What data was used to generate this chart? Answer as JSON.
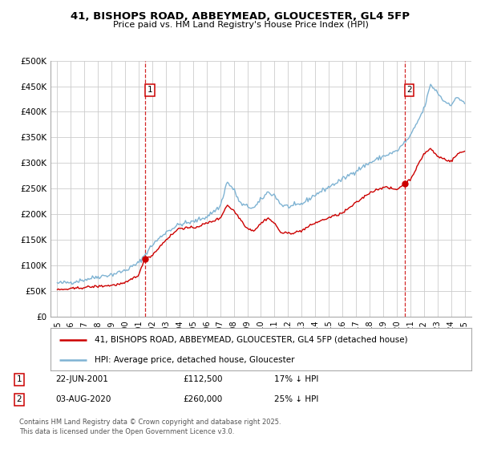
{
  "title_line1": "41, BISHOPS ROAD, ABBEYMEAD, GLOUCESTER, GL4 5FP",
  "title_line2": "Price paid vs. HM Land Registry's House Price Index (HPI)",
  "ylim": [
    0,
    500000
  ],
  "yticks": [
    0,
    50000,
    100000,
    150000,
    200000,
    250000,
    300000,
    350000,
    400000,
    450000,
    500000
  ],
  "ytick_labels": [
    "£0",
    "£50K",
    "£100K",
    "£150K",
    "£200K",
    "£250K",
    "£300K",
    "£350K",
    "£400K",
    "£450K",
    "£500K"
  ],
  "xlim_start": 1994.5,
  "xlim_end": 2025.5,
  "xticks": [
    1995,
    1996,
    1997,
    1998,
    1999,
    2000,
    2001,
    2002,
    2003,
    2004,
    2005,
    2006,
    2007,
    2008,
    2009,
    2010,
    2011,
    2012,
    2013,
    2014,
    2015,
    2016,
    2017,
    2018,
    2019,
    2020,
    2021,
    2022,
    2023,
    2024,
    2025
  ],
  "legend_entries": [
    "41, BISHOPS ROAD, ABBEYMEAD, GLOUCESTER, GL4 5FP (detached house)",
    "HPI: Average price, detached house, Gloucester"
  ],
  "legend_colors": [
    "#cc0000",
    "#7fb3d3"
  ],
  "sale1_x": 2001.47,
  "sale1_y": 112500,
  "sale1_label": "1",
  "sale1_vline_x": 2001.47,
  "sale2_x": 2020.58,
  "sale2_y": 260000,
  "sale2_label": "2",
  "sale2_vline_x": 2020.58,
  "table_entries": [
    {
      "num": "1",
      "date": "22-JUN-2001",
      "price": "£112,500",
      "hpi": "17% ↓ HPI"
    },
    {
      "num": "2",
      "date": "03-AUG-2020",
      "price": "£260,000",
      "hpi": "25% ↓ HPI"
    }
  ],
  "footer": "Contains HM Land Registry data © Crown copyright and database right 2025.\nThis data is licensed under the Open Government Licence v3.0.",
  "background_color": "#ffffff",
  "grid_color": "#cccccc",
  "hpi_color": "#7fb3d3",
  "price_color": "#cc0000",
  "vline_color": "#cc0000",
  "hpi_anchors": [
    [
      1995.0,
      65000
    ],
    [
      1996.0,
      67000
    ],
    [
      1997.0,
      72000
    ],
    [
      1998.0,
      78000
    ],
    [
      1999.0,
      82000
    ],
    [
      2000.0,
      90000
    ],
    [
      2001.0,
      105000
    ],
    [
      2002.0,
      140000
    ],
    [
      2003.0,
      165000
    ],
    [
      2004.0,
      180000
    ],
    [
      2005.0,
      185000
    ],
    [
      2006.0,
      195000
    ],
    [
      2007.0,
      215000
    ],
    [
      2007.5,
      263000
    ],
    [
      2008.0,
      248000
    ],
    [
      2008.5,
      220000
    ],
    [
      2009.0,
      215000
    ],
    [
      2009.5,
      212000
    ],
    [
      2010.0,
      228000
    ],
    [
      2010.5,
      243000
    ],
    [
      2011.0,
      237000
    ],
    [
      2011.5,
      218000
    ],
    [
      2012.0,
      215000
    ],
    [
      2012.5,
      216000
    ],
    [
      2013.0,
      220000
    ],
    [
      2014.0,
      238000
    ],
    [
      2015.0,
      253000
    ],
    [
      2016.0,
      268000
    ],
    [
      2017.0,
      285000
    ],
    [
      2018.0,
      300000
    ],
    [
      2019.0,
      313000
    ],
    [
      2020.0,
      323000
    ],
    [
      2021.0,
      352000
    ],
    [
      2022.0,
      405000
    ],
    [
      2022.5,
      453000
    ],
    [
      2023.0,
      438000
    ],
    [
      2023.5,
      420000
    ],
    [
      2024.0,
      415000
    ],
    [
      2024.5,
      428000
    ],
    [
      2025.0,
      418000
    ]
  ],
  "price_anchors": [
    [
      1995.0,
      52000
    ],
    [
      1996.0,
      54000
    ],
    [
      1997.0,
      57000
    ],
    [
      1998.0,
      59000
    ],
    [
      1999.0,
      61000
    ],
    [
      2000.0,
      65000
    ],
    [
      2001.0,
      82000
    ],
    [
      2001.47,
      112500
    ],
    [
      2002.0,
      120000
    ],
    [
      2003.0,
      150000
    ],
    [
      2004.0,
      173000
    ],
    [
      2005.0,
      173000
    ],
    [
      2006.0,
      182000
    ],
    [
      2007.0,
      192000
    ],
    [
      2007.5,
      218000
    ],
    [
      2008.0,
      207000
    ],
    [
      2009.0,
      172000
    ],
    [
      2009.5,
      168000
    ],
    [
      2010.0,
      182000
    ],
    [
      2010.5,
      193000
    ],
    [
      2011.0,
      182000
    ],
    [
      2011.5,
      163000
    ],
    [
      2012.0,
      163000
    ],
    [
      2012.5,
      164000
    ],
    [
      2013.0,
      168000
    ],
    [
      2014.0,
      183000
    ],
    [
      2015.0,
      193000
    ],
    [
      2016.0,
      202000
    ],
    [
      2017.0,
      222000
    ],
    [
      2018.0,
      242000
    ],
    [
      2019.0,
      253000
    ],
    [
      2020.0,
      248000
    ],
    [
      2020.58,
      260000
    ],
    [
      2021.0,
      268000
    ],
    [
      2021.5,
      292000
    ],
    [
      2022.0,
      318000
    ],
    [
      2022.5,
      328000
    ],
    [
      2023.0,
      313000
    ],
    [
      2023.5,
      308000
    ],
    [
      2024.0,
      303000
    ],
    [
      2024.5,
      318000
    ],
    [
      2025.0,
      323000
    ]
  ]
}
